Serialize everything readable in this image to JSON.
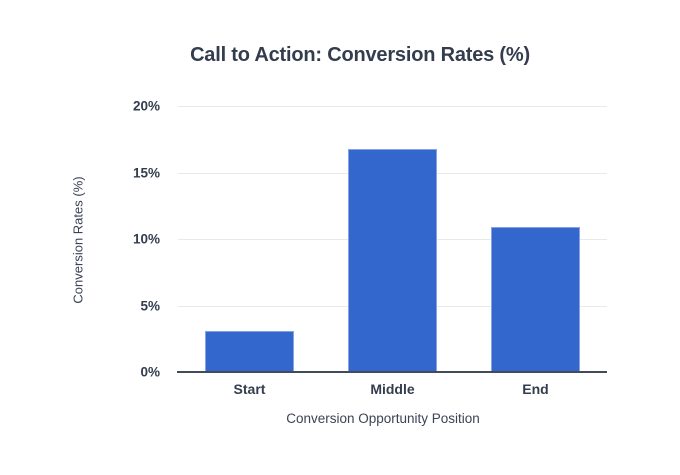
{
  "chart_data": {
    "type": "bar",
    "title": "Call to Action: Conversion Rates (%)",
    "xlabel": "Conversion Opportunity Position",
    "ylabel": "Conversion Rates (%)",
    "categories": [
      "Start",
      "Middle",
      "End"
    ],
    "values": [
      3.1,
      16.8,
      10.9
    ],
    "ylim": [
      0,
      20
    ],
    "yticks": [
      "0%",
      "5%",
      "10%",
      "15%",
      "20%"
    ],
    "grid": "horizontal-only",
    "legend": "none",
    "colors": {
      "bar_fill": "#3467cd",
      "bar_stroke": "#85a2e2",
      "gridline": "#e7e9ec",
      "axis_line": "#434b5b",
      "text": "#343d4e"
    }
  }
}
